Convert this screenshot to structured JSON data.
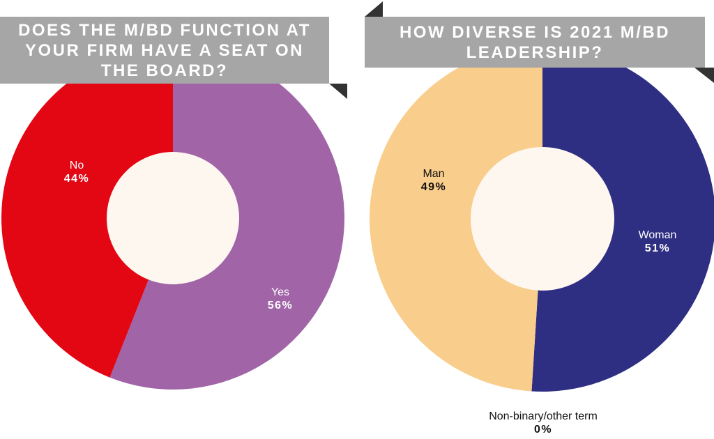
{
  "chart_data": [
    {
      "type": "pie",
      "title": "DOES THE M/BD FUNCTION AT YOUR FIRM HAVE A SEAT ON THE BOARD?",
      "slices": [
        {
          "label": "Yes",
          "value": 56,
          "value_label": "56%",
          "color": "#a064a7"
        },
        {
          "label": "No",
          "value": 44,
          "value_label": "44%",
          "color": "#e30613"
        }
      ],
      "center_color": "#fdf7f0"
    },
    {
      "type": "pie",
      "title": "HOW DIVERSE IS 2021 M/BD LEADERSHIP?",
      "slices": [
        {
          "label": "Woman",
          "value": 51,
          "value_label": "51%",
          "color": "#2e2e83"
        },
        {
          "label": "Non-binary/other term",
          "value": 0,
          "value_label": "0%",
          "color": "#888888"
        },
        {
          "label": "Man",
          "value": 49,
          "value_label": "49%",
          "color": "#f9cd8b"
        }
      ],
      "center_color": "#fdf7f0"
    }
  ],
  "colors": {
    "banner": "#a6a6a6",
    "banner_fold": "#333333"
  }
}
